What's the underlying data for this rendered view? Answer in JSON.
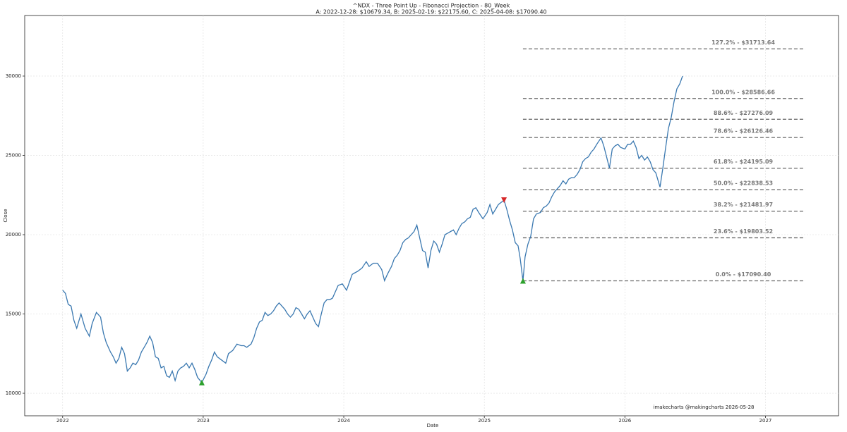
{
  "chart_data": {
    "type": "line",
    "title": "^NDX - Three Point Up - Fibonacci Projection - 80_Week",
    "subtitle": "A: 2022-12-28: $10679.34, B: 2025-02-19: $22175.60, C: 2025-04-08: $17090.40",
    "x_label": "Date",
    "y_label": "Close",
    "annotation": "imakecharts @makingcharts 2026-05-28",
    "grid": true,
    "xlim": [
      2021.73,
      2027.52
    ],
    "xticks": [
      2022,
      2023,
      2024,
      2025,
      2026,
      2027
    ],
    "ylim": [
      8580,
      33820
    ],
    "yticks": [
      10000,
      15000,
      20000,
      25000,
      30000
    ],
    "color": "#3a78b0",
    "x": [
      2022.0,
      2022.02,
      2022.04,
      2022.06,
      2022.08,
      2022.1,
      2022.13,
      2022.16,
      2022.19,
      2022.21,
      2022.24,
      2022.27,
      2022.29,
      2022.31,
      2022.34,
      2022.36,
      2022.38,
      2022.4,
      2022.42,
      2022.44,
      2022.46,
      2022.48,
      2022.5,
      2022.52,
      2022.54,
      2022.56,
      2022.58,
      2022.6,
      2022.62,
      2022.64,
      2022.66,
      2022.68,
      2022.7,
      2022.72,
      2022.74,
      2022.76,
      2022.78,
      2022.8,
      2022.82,
      2022.84,
      2022.86,
      2022.88,
      2022.9,
      2022.92,
      2022.94,
      2022.96,
      2022.99,
      2023.02,
      2023.04,
      2023.06,
      2023.08,
      2023.1,
      2023.13,
      2023.16,
      2023.18,
      2023.21,
      2023.24,
      2023.27,
      2023.29,
      2023.31,
      2023.34,
      2023.36,
      2023.38,
      2023.4,
      2023.42,
      2023.44,
      2023.46,
      2023.48,
      2023.5,
      2023.52,
      2023.54,
      2023.56,
      2023.58,
      2023.6,
      2023.62,
      2023.64,
      2023.66,
      2023.68,
      2023.7,
      2023.72,
      2023.74,
      2023.76,
      2023.78,
      2023.8,
      2023.82,
      2023.84,
      2023.86,
      2023.88,
      2023.9,
      2023.92,
      2023.94,
      2023.96,
      2023.99,
      2024.02,
      2024.04,
      2024.06,
      2024.08,
      2024.1,
      2024.13,
      2024.16,
      2024.18,
      2024.21,
      2024.24,
      2024.27,
      2024.29,
      2024.31,
      2024.34,
      2024.36,
      2024.38,
      2024.4,
      2024.42,
      2024.44,
      2024.46,
      2024.48,
      2024.5,
      2024.52,
      2024.54,
      2024.56,
      2024.58,
      2024.6,
      2024.62,
      2024.64,
      2024.66,
      2024.68,
      2024.7,
      2024.72,
      2024.74,
      2024.76,
      2024.78,
      2024.8,
      2024.82,
      2024.84,
      2024.86,
      2024.88,
      2024.9,
      2024.92,
      2024.94,
      2024.96,
      2024.99,
      2025.02,
      2025.04,
      2025.06,
      2025.08,
      2025.1,
      2025.14,
      2025.16,
      2025.18,
      2025.2,
      2025.22,
      2025.24,
      2025.255,
      2025.275,
      2025.29,
      2025.31,
      2025.33,
      2025.35,
      2025.37,
      2025.4,
      2025.42,
      2025.44,
      2025.46,
      2025.48,
      2025.5,
      2025.52,
      2025.54,
      2025.56,
      2025.58,
      2025.6,
      2025.62,
      2025.64,
      2025.66,
      2025.68,
      2025.7,
      2025.72,
      2025.74,
      2025.76,
      2025.78,
      2025.8,
      2025.83,
      2025.85,
      2025.87,
      2025.89,
      2025.91,
      2025.93,
      2025.95,
      2025.97,
      2026.0,
      2026.02,
      2026.04,
      2026.06,
      2026.08,
      2026.1,
      2026.12,
      2026.14,
      2026.16,
      2026.18,
      2026.2,
      2026.22,
      2026.25,
      2026.27,
      2026.29,
      2026.31,
      2026.33,
      2026.35,
      2026.37,
      2026.39,
      2026.41
    ],
    "values": [
      16500,
      16300,
      15600,
      15500,
      14600,
      14100,
      15000,
      14100,
      13600,
      14400,
      15100,
      14800,
      13800,
      13200,
      12600,
      12300,
      11900,
      12200,
      12900,
      12500,
      11400,
      11600,
      11900,
      11800,
      12100,
      12600,
      12900,
      13200,
      13600,
      13200,
      12300,
      12200,
      11600,
      11700,
      11100,
      11000,
      11400,
      10800,
      11400,
      11600,
      11700,
      11900,
      11600,
      11900,
      11500,
      11000,
      10679.34,
      11200,
      11700,
      12100,
      12600,
      12300,
      12100,
      11900,
      12500,
      12700,
      13100,
      13000,
      13000,
      12900,
      13100,
      13500,
      14100,
      14500,
      14600,
      15100,
      14900,
      15000,
      15200,
      15500,
      15700,
      15500,
      15300,
      15000,
      14800,
      15000,
      15400,
      15300,
      15000,
      14700,
      15000,
      15200,
      14800,
      14400,
      14200,
      15000,
      15700,
      15900,
      15900,
      16000,
      16400,
      16800,
      16900,
      16500,
      17000,
      17500,
      17600,
      17700,
      17900,
      18300,
      18000,
      18200,
      18200,
      17800,
      17100,
      17500,
      18000,
      18500,
      18700,
      19000,
      19500,
      19700,
      19800,
      20000,
      20200,
      20600,
      19800,
      19000,
      18900,
      17900,
      19000,
      19600,
      19400,
      18900,
      19400,
      20000,
      20100,
      20200,
      20300,
      20000,
      20400,
      20700,
      20800,
      21000,
      21100,
      21600,
      21700,
      21400,
      21000,
      21400,
      21900,
      21300,
      21600,
      21900,
      22175.6,
      21600,
      20900,
      20300,
      19500,
      19300,
      18500,
      17090.4,
      18600,
      19400,
      19900,
      21000,
      21300,
      21400,
      21700,
      21800,
      22000,
      22400,
      22700,
      22900,
      23100,
      23400,
      23200,
      23500,
      23600,
      23600,
      23800,
      24100,
      24600,
      24800,
      24900,
      25200,
      25400,
      25700,
      26100,
      25600,
      24900,
      24200,
      25400,
      25600,
      25700,
      25500,
      25400,
      25700,
      25700,
      25900,
      25500,
      24800,
      25000,
      24700,
      24900,
      24600,
      24100,
      23900,
      23000,
      24200,
      25500,
      26700,
      27400,
      28400,
      29200,
      29500,
      30000
    ],
    "fib_levels": [
      {
        "value": 31713.64,
        "label": "127.2% - $31713.64"
      },
      {
        "value": 28586.66,
        "label": "100.0% - $28586.66"
      },
      {
        "value": 27276.09,
        "label": "88.6% - $27276.09"
      },
      {
        "value": 26126.46,
        "label": "78.6% - $26126.46"
      },
      {
        "value": 24195.09,
        "label": "61.8% - $24195.09"
      },
      {
        "value": 22838.53,
        "label": "50.0% - $22838.53"
      },
      {
        "value": 21481.97,
        "label": "38.2% - $21481.97"
      },
      {
        "value": 19803.52,
        "label": "23.6% - $19803.52"
      },
      {
        "value": 17090.4,
        "label": "0.0% - $17090.40"
      }
    ],
    "fib_color": "#666666",
    "markers": [
      {
        "x": 2022.99,
        "value": 10679.34,
        "color": "#2ca02c",
        "shape": "up"
      },
      {
        "x": 2025.14,
        "value": 22175.6,
        "color": "#d62728",
        "shape": "down"
      },
      {
        "x": 2025.275,
        "value": 17090.4,
        "color": "#2ca02c",
        "shape": "up"
      }
    ]
  }
}
